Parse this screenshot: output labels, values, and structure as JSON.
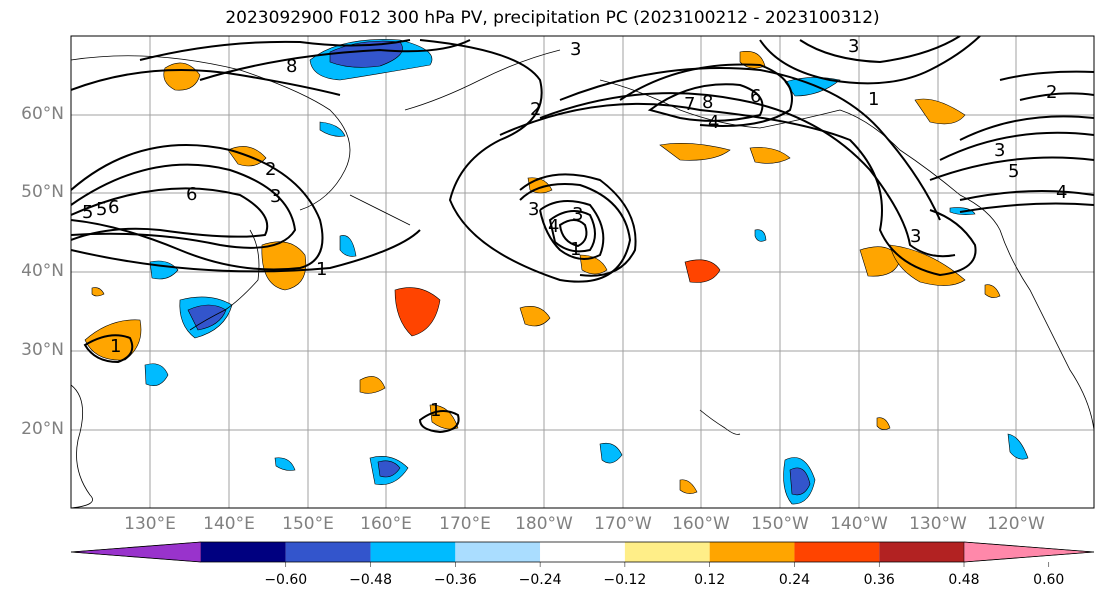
{
  "title": "2023092900 F012 300 hPa PV, precipitation PC (2023100212 - 2023100312)",
  "lat_labels": [
    "60°N",
    "50°N",
    "40°N",
    "30°N",
    "20°N"
  ],
  "lon_labels": [
    "130°E",
    "140°E",
    "150°E",
    "160°E",
    "170°E",
    "180°W",
    "170°W",
    "160°W",
    "150°W",
    "140°W",
    "130°W",
    "120°W"
  ],
  "colorbar": {
    "ticks": [
      "−0.60",
      "−0.48",
      "−0.36",
      "−0.24",
      "−0.12",
      "0.12",
      "0.24",
      "0.36",
      "0.48",
      "0.60"
    ],
    "colors": [
      "#9933cc",
      "#000080",
      "#3355cc",
      "#00bbff",
      "#aaddff",
      "#ffffff",
      "#ffee88",
      "#ffa500",
      "#ff4400",
      "#b22222",
      "#ff88aa"
    ]
  },
  "contour_labels": [
    "8",
    "6",
    "5",
    "3",
    "2",
    "1",
    "7",
    "8",
    "6",
    "4",
    "3",
    "2",
    "1",
    "2",
    "3",
    "5",
    "4",
    "6",
    "5",
    "3",
    "4",
    "3",
    "1",
    "3",
    "3",
    "1",
    "1"
  ],
  "colors": {
    "grid": "#a0a0a0",
    "contour": "#000000",
    "coast": "#000000",
    "label_gray": "#808080"
  }
}
